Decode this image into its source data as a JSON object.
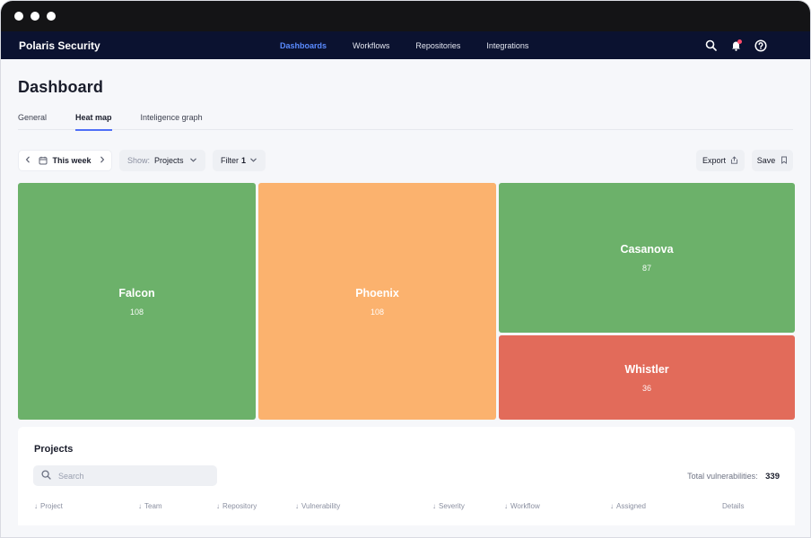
{
  "window": {
    "controls": [
      "close",
      "minimize",
      "maximize"
    ]
  },
  "nav": {
    "brand": "Polaris Security",
    "links": [
      {
        "label": "Dashboards",
        "active": true
      },
      {
        "label": "Workflows",
        "active": false
      },
      {
        "label": "Repositories",
        "active": false
      },
      {
        "label": "Integrations",
        "active": false
      }
    ],
    "icons": [
      "search-icon",
      "bell-icon",
      "help-icon"
    ]
  },
  "page": {
    "title": "Dashboard",
    "tabs": [
      {
        "label": "General",
        "active": false
      },
      {
        "label": "Heat map",
        "active": true
      },
      {
        "label": "Inteligence graph",
        "active": false
      }
    ]
  },
  "toolbar": {
    "week_label": "This week",
    "show_prefix": "Show:",
    "show_value": "Projects",
    "filter_label": "Filter",
    "filter_count": "1",
    "export_label": "Export",
    "save_label": "Save"
  },
  "colors": {
    "green": "#6cb16a",
    "orange": "#fbb26e",
    "red": "#e26b5a",
    "accent": "#4f6ef7",
    "nav_bg": "#0b1230"
  },
  "heatmap": {
    "tiles": [
      {
        "name": "Falcon",
        "value": "108",
        "status": "green"
      },
      {
        "name": "Phoenix",
        "value": "108",
        "status": "orange"
      },
      {
        "name": "Casanova",
        "value": "87",
        "status": "green"
      },
      {
        "name": "Whistler",
        "value": "36",
        "status": "red"
      }
    ]
  },
  "projects": {
    "title": "Projects",
    "search_placeholder": "Search",
    "total_label": "Total vulnerabilities:",
    "total_value": "339",
    "columns": [
      {
        "label": "Project",
        "sortable": true
      },
      {
        "label": "Team",
        "sortable": true
      },
      {
        "label": "Repository",
        "sortable": true
      },
      {
        "label": "Vulnerability",
        "sortable": true
      },
      {
        "label": "Severity",
        "sortable": true
      },
      {
        "label": "Workflow",
        "sortable": true
      },
      {
        "label": "Assigned",
        "sortable": true
      },
      {
        "label": "Details",
        "sortable": false
      }
    ]
  }
}
